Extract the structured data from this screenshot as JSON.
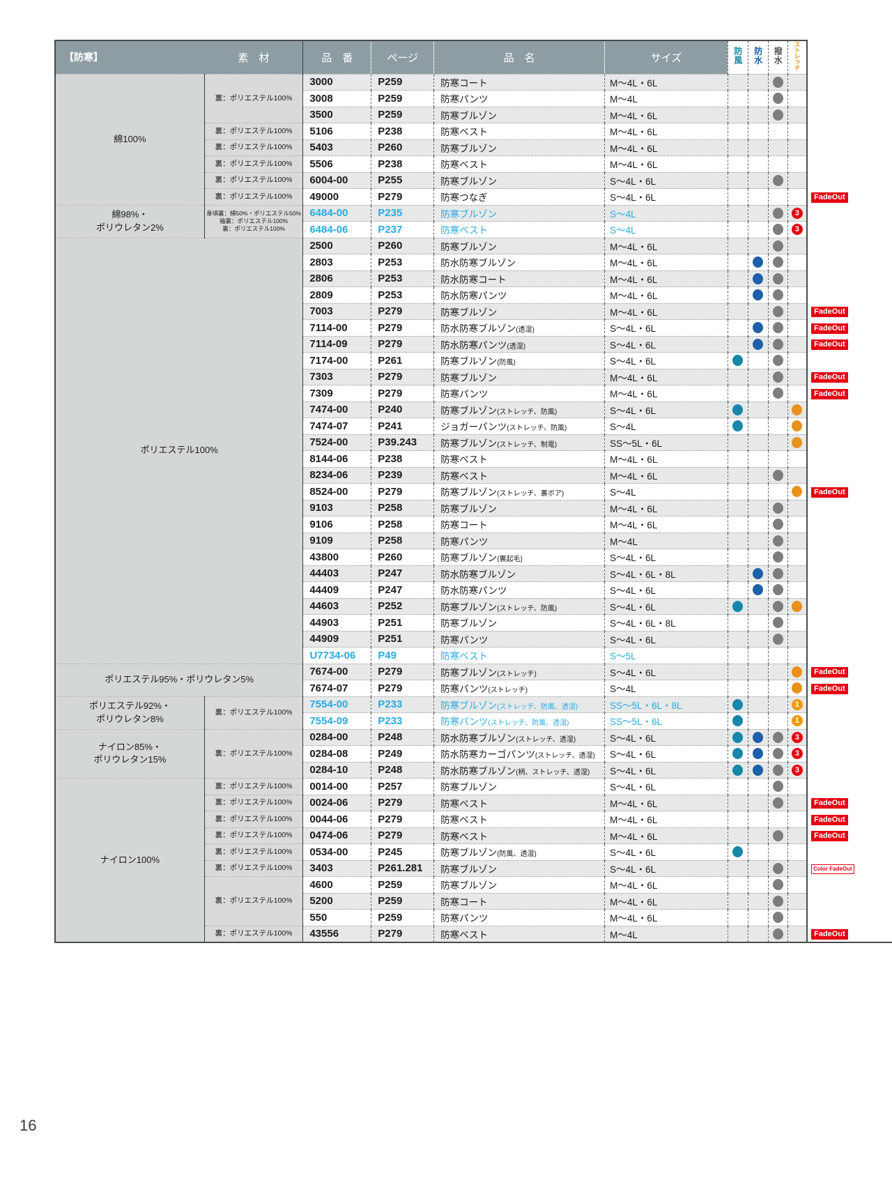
{
  "page": {
    "number": "16"
  },
  "header": {
    "category": "【防寒】",
    "material": "素　材",
    "item_no": "品　番",
    "page_col": "ページ",
    "item_name": "品　名",
    "size": "サイズ",
    "windproof": "防風",
    "waterproof": "防水",
    "water_repellent": "撥水",
    "stretch": "ストレッチ"
  },
  "colors": {
    "header_bg": "#8e9da3",
    "highlight_text": "#29abe2",
    "windproof_dot": "#1787a8",
    "waterproof_dot": "#1d5fa9",
    "water_repellent_dot": "#7d7d7d",
    "stretch_dot": "#e8921c",
    "badge_red": "#e60012",
    "badge_orange": "#f39800",
    "fadeout_bg": "#e60012"
  },
  "groups": [
    {
      "material": "綿100%",
      "rows": [
        {
          "sub": "裏：ポリエステル100%",
          "subSpan": 3,
          "no": "3000",
          "page": "P259",
          "name": "防寒コート",
          "size": "M〜4L・6L",
          "repel": true
        },
        {
          "no": "3008",
          "page": "P259",
          "name": "防寒パンツ",
          "size": "M〜4L",
          "repel": true
        },
        {
          "no": "3500",
          "page": "P259",
          "name": "防寒ブルゾン",
          "size": "M〜4L・6L",
          "repel": true
        },
        {
          "sub": "裏：ポリエステル100%",
          "no": "5106",
          "page": "P238",
          "name": "防寒ベスト",
          "size": "M〜4L・6L"
        },
        {
          "sub": "裏：ポリエステル100%",
          "no": "5403",
          "page": "P260",
          "name": "防寒ブルゾン",
          "size": "M〜4L・6L"
        },
        {
          "sub": "裏：ポリエステル100%",
          "no": "5506",
          "page": "P238",
          "name": "防寒ベスト",
          "size": "M〜4L・6L"
        },
        {
          "sub": "裏：ポリエステル100%",
          "no": "6004-00",
          "page": "P255",
          "name": "防寒ブルゾン",
          "size": "S〜4L・6L",
          "repel": true
        },
        {
          "sub": "裏：ポリエステル100%",
          "no": "49000",
          "page": "P279",
          "name": "防寒つなぎ",
          "size": "S〜4L・6L",
          "fade": "FadeOut"
        }
      ]
    },
    {
      "material": "綿98%・\nポリウレタン2%",
      "rows": [
        {
          "sub": "身頃裏：綿50%・ポリエステル50%\n袖裏：ポリエステル100%\n裏：ポリエステル100%",
          "subSpan": 2,
          "no": "6484-00",
          "page": "P235",
          "name": "防寒ブルゾン",
          "size": "S〜4L",
          "repel": true,
          "stretch": "3",
          "hl": true
        },
        {
          "no": "6484-06",
          "page": "P237",
          "name": "防寒ベスト",
          "size": "S〜4L",
          "repel": true,
          "stretch": "3",
          "hl": true
        }
      ]
    },
    {
      "material": "ポリエステル100%",
      "full": true,
      "rows": [
        {
          "no": "2500",
          "page": "P260",
          "name": "防寒ブルゾン",
          "size": "M〜4L・6L",
          "repel": true
        },
        {
          "no": "2803",
          "page": "P253",
          "name": "防水防寒ブルゾン",
          "size": "M〜4L・6L",
          "water": true,
          "repel": true
        },
        {
          "no": "2806",
          "page": "P253",
          "name": "防水防寒コート",
          "size": "M〜4L・6L",
          "water": true,
          "repel": true
        },
        {
          "no": "2809",
          "page": "P253",
          "name": "防水防寒パンツ",
          "size": "M〜4L・6L",
          "water": true,
          "repel": true
        },
        {
          "no": "7003",
          "page": "P279",
          "name": "防寒ブルゾン",
          "size": "M〜4L・6L",
          "repel": true,
          "fade": "FadeOut"
        },
        {
          "no": "7114-00",
          "page": "P279",
          "name": "防水防寒ブルゾン",
          "note": "(透湿)",
          "size": "S〜4L・6L",
          "water": true,
          "repel": true,
          "fade": "FadeOut"
        },
        {
          "no": "7114-09",
          "page": "P279",
          "name": "防水防寒パンツ",
          "note": "(透湿)",
          "size": "S〜4L・6L",
          "water": true,
          "repel": true,
          "fade": "FadeOut"
        },
        {
          "no": "7174-00",
          "page": "P261",
          "name": "防寒ブルゾン",
          "note": "(防風)",
          "size": "S〜4L・6L",
          "wind": true,
          "repel": true
        },
        {
          "no": "7303",
          "page": "P279",
          "name": "防寒ブルゾン",
          "size": "M〜4L・6L",
          "repel": true,
          "fade": "FadeOut"
        },
        {
          "no": "7309",
          "page": "P279",
          "name": "防寒パンツ",
          "size": "M〜4L・6L",
          "repel": true,
          "fade": "FadeOut"
        },
        {
          "no": "7474-00",
          "page": "P240",
          "name": "防寒ブルゾン",
          "note": "(ストレッチ、防風)",
          "size": "S〜4L・6L",
          "wind": true,
          "stretch": "dot"
        },
        {
          "no": "7474-07",
          "page": "P241",
          "name": "ジョガーパンツ",
          "note": "(ストレッチ、防風)",
          "size": "S〜4L",
          "wind": true,
          "stretch": "dot"
        },
        {
          "no": "7524-00",
          "page": "P39.243",
          "name": "防寒ブルゾン",
          "note": "(ストレッチ、制電)",
          "size": "SS〜5L・6L",
          "stretch": "dot"
        },
        {
          "no": "8144-06",
          "page": "P238",
          "name": "防寒ベスト",
          "size": "M〜4L・6L"
        },
        {
          "no": "8234-06",
          "page": "P239",
          "name": "防寒ベスト",
          "size": "M〜4L・6L",
          "repel": true
        },
        {
          "no": "8524-00",
          "page": "P279",
          "name": "防寒ブルゾン",
          "note": "(ストレッチ、裏ボア)",
          "size": "S〜4L",
          "stretch": "dot",
          "fade": "FadeOut"
        },
        {
          "no": "9103",
          "page": "P258",
          "name": "防寒ブルゾン",
          "size": "M〜4L・6L",
          "repel": true
        },
        {
          "no": "9106",
          "page": "P258",
          "name": "防寒コート",
          "size": "M〜4L・6L",
          "repel": true
        },
        {
          "no": "9109",
          "page": "P258",
          "name": "防寒パンツ",
          "size": "M〜4L",
          "repel": true
        },
        {
          "no": "43800",
          "page": "P260",
          "name": "防寒ブルゾン",
          "note": "(裏起毛)",
          "size": "S〜4L・6L",
          "repel": true
        },
        {
          "no": "44403",
          "page": "P247",
          "name": "防水防寒ブルゾン",
          "size": "S〜4L・6L・8L",
          "water": true,
          "repel": true
        },
        {
          "no": "44409",
          "page": "P247",
          "name": "防水防寒パンツ",
          "size": "S〜4L・6L",
          "water": true,
          "repel": true
        },
        {
          "no": "44603",
          "page": "P252",
          "name": "防寒ブルゾン",
          "note": "(ストレッチ、防風)",
          "size": "S〜4L・6L",
          "wind": true,
          "repel": true,
          "stretch": "dot"
        },
        {
          "no": "44903",
          "page": "P251",
          "name": "防寒ブルゾン",
          "size": "S〜4L・6L・8L",
          "repel": true
        },
        {
          "no": "44909",
          "page": "P251",
          "name": "防寒パンツ",
          "size": "S〜4L・6L",
          "repel": true
        },
        {
          "no": "U7734-06",
          "page": "P49",
          "name": "防寒ベスト",
          "size": "S〜5L",
          "hl": true
        }
      ]
    },
    {
      "material": "ポリエステル95%・ポリウレタン5%",
      "full": true,
      "rows": [
        {
          "no": "7674-00",
          "page": "P279",
          "name": "防寒ブルゾン",
          "note": "(ストレッチ)",
          "size": "S〜4L・6L",
          "stretch": "dot",
          "fade": "FadeOut"
        },
        {
          "no": "7674-07",
          "page": "P279",
          "name": "防寒パンツ",
          "note": "(ストレッチ)",
          "size": "S〜4L",
          "stretch": "dot",
          "fade": "FadeOut"
        }
      ]
    },
    {
      "material": "ポリエステル92%・\nポリウレタン8%",
      "rows": [
        {
          "sub": "裏：ポリエステル100%",
          "subSpan": 2,
          "no": "7554-00",
          "page": "P233",
          "name": "防寒ブルゾン",
          "note": "(ストレッチ、防風、透湿)",
          "size": "SS〜5L・6L・8L",
          "wind": true,
          "stretch": "1",
          "hl": true
        },
        {
          "no": "7554-09",
          "page": "P233",
          "name": "防寒パンツ",
          "note": "(ストレッチ、防風、透湿)",
          "size": "SS〜5L・6L",
          "wind": true,
          "stretch": "1",
          "hl": true
        }
      ]
    },
    {
      "material": "ナイロン85%・\nポリウレタン15%",
      "rows": [
        {
          "sub": "裏：ポリエステル100%",
          "subSpan": 3,
          "no": "0284-00",
          "page": "P248",
          "name": "防水防寒ブルゾン",
          "note": "(ストレッチ、透湿)",
          "size": "S〜4L・6L",
          "wind": true,
          "water": true,
          "repel": true,
          "stretch": "3"
        },
        {
          "no": "0284-08",
          "page": "P249",
          "name": "防水防寒カーゴパンツ",
          "note": "(ストレッチ、透湿)",
          "size": "S〜4L・6L",
          "wind": true,
          "water": true,
          "repel": true,
          "stretch": "3"
        },
        {
          "no": "0284-10",
          "page": "P248",
          "name": "防水防寒ブルゾン",
          "note": "(柄、ストレッチ、透湿)",
          "size": "S〜4L・6L",
          "wind": true,
          "water": true,
          "repel": true,
          "stretch": "3"
        }
      ]
    },
    {
      "material": "ナイロン100%",
      "rows": [
        {
          "sub": "裏：ポリエステル100%",
          "no": "0014-00",
          "page": "P257",
          "name": "防寒ブルゾン",
          "size": "S〜4L・6L",
          "repel": true
        },
        {
          "sub": "裏：ポリエステル100%",
          "no": "0024-06",
          "page": "P279",
          "name": "防寒ベスト",
          "size": "M〜4L・6L",
          "repel": true,
          "fade": "FadeOut"
        },
        {
          "sub": "裏：ポリエステル100%",
          "no": "0044-06",
          "page": "P279",
          "name": "防寒ベスト",
          "size": "M〜4L・6L",
          "fade": "FadeOut"
        },
        {
          "sub": "裏：ポリエステル100%",
          "no": "0474-06",
          "page": "P279",
          "name": "防寒ベスト",
          "size": "M〜4L・6L",
          "repel": true,
          "fade": "FadeOut"
        },
        {
          "sub": "裏：ポリエステル100%",
          "no": "0534-00",
          "page": "P245",
          "name": "防寒ブルゾン",
          "note": "(防風、透湿)",
          "size": "S〜4L・6L",
          "wind": true
        },
        {
          "sub": "裏：ポリエステル100%",
          "no": "3403",
          "page": "P261.281",
          "name": "防寒ブルゾン",
          "size": "S〜4L・6L",
          "repel": true,
          "fade": "Color FadeOut"
        },
        {
          "sub": "裏：ポリエステル100%",
          "subSpan": 3,
          "no": "4600",
          "page": "P259",
          "name": "防寒ブルゾン",
          "size": "M〜4L・6L",
          "repel": true
        },
        {
          "no": "5200",
          "page": "P259",
          "name": "防寒コート",
          "size": "M〜4L・6L",
          "repel": true
        },
        {
          "no": "550",
          "page": "P259",
          "name": "防寒パンツ",
          "size": "M〜4L・6L",
          "repel": true
        },
        {
          "sub": "裏：ポリエステル100%",
          "no": "43556",
          "page": "P279",
          "name": "防寒ベスト",
          "size": "M〜4L",
          "repel": true,
          "fade": "FadeOut"
        }
      ]
    }
  ]
}
